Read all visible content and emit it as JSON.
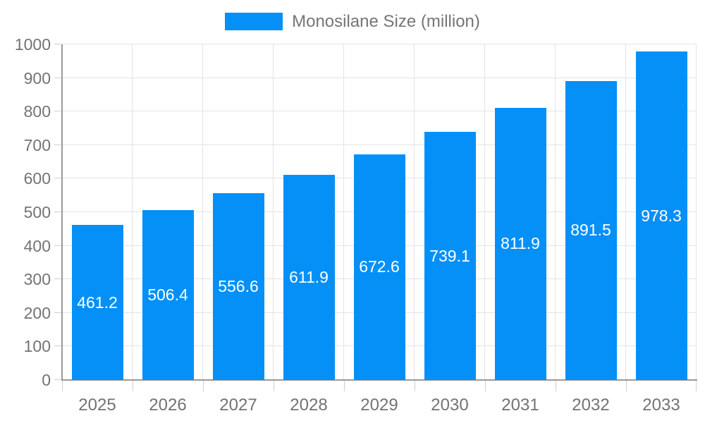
{
  "chart_data": {
    "type": "bar",
    "title": "",
    "legend": {
      "label": "Monosilane Size (million)",
      "position": "top"
    },
    "categories": [
      "2025",
      "2026",
      "2027",
      "2028",
      "2029",
      "2030",
      "2031",
      "2032",
      "2033"
    ],
    "series": [
      {
        "name": "Monosilane Size (million)",
        "values": [
          461.2,
          506.4,
          556.6,
          611.9,
          672.6,
          739.1,
          811.9,
          891.5,
          978.3
        ]
      }
    ],
    "data_labels": [
      "461.2",
      "506.4",
      "556.6",
      "611.9",
      "672.6",
      "739.1",
      "811.9",
      "891.5",
      "978.3"
    ],
    "xlabel": "",
    "ylabel": "",
    "ylim": [
      0,
      1000
    ],
    "ytick_step": 100,
    "ytick_labels": [
      "0",
      "100",
      "200",
      "300",
      "400",
      "500",
      "600",
      "700",
      "800",
      "900",
      "1000"
    ],
    "grid": true,
    "colors": {
      "bar": "#0590f8",
      "value_label": "#ffffff",
      "grid": "#e4e4e4",
      "tick": "#cfcfcf",
      "axis": "#999999",
      "tick_label": "#737373",
      "legend_label": "#757575",
      "background": "#ffffff"
    }
  }
}
